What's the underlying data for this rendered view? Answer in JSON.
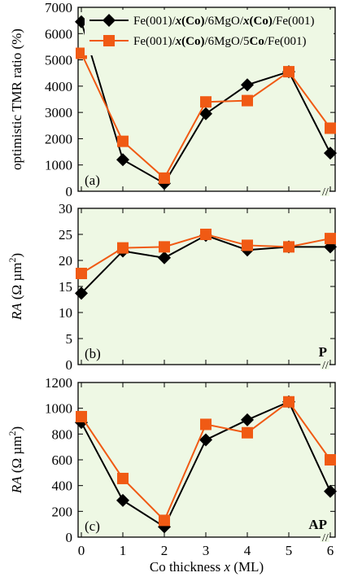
{
  "figure": {
    "x_axis_label_parts": [
      {
        "text": "Co thickness ",
        "style": "normal"
      },
      {
        "text": "x",
        "style": "italic"
      },
      {
        "text": " (ML)",
        "style": "normal"
      }
    ],
    "x_ticks": [
      "0",
      "1",
      "2",
      "3",
      "4",
      "5",
      "6"
    ],
    "axis_break_mark": "//",
    "legend": [
      {
        "name": "Fe(001)/x(Co)/6MgO/x(Co)/Fe(001)",
        "parts": [
          {
            "text": "Fe(001)/",
            "style": "normal"
          },
          {
            "text": "x",
            "style": "bold-italic"
          },
          {
            "text": "(Co)",
            "style": "bold"
          },
          {
            "text": "/6MgO/",
            "style": "normal"
          },
          {
            "text": "x",
            "style": "bold-italic"
          },
          {
            "text": "(Co)",
            "style": "bold"
          },
          {
            "text": "/Fe(001)",
            "style": "normal"
          }
        ],
        "marker": "diamond",
        "color": "#000000"
      },
      {
        "name": "Fe(001)/x(Co)/6MgO/5Co/Fe(001)",
        "parts": [
          {
            "text": "Fe(001)/",
            "style": "normal"
          },
          {
            "text": "x",
            "style": "bold-italic"
          },
          {
            "text": "(Co)",
            "style": "bold"
          },
          {
            "text": "/6MgO/5",
            "style": "normal"
          },
          {
            "text": "Co",
            "style": "bold"
          },
          {
            "text": "/Fe(001)",
            "style": "normal"
          }
        ],
        "marker": "square",
        "color": "#f05a14"
      }
    ],
    "colors": {
      "plot_background": "#eef8e4",
      "series_black": "#000000",
      "series_orange": "#f05a14"
    }
  },
  "chart_data": [
    {
      "type": "line",
      "panel_tag": "(a)",
      "corner_label": "",
      "ylabel_parts": [
        {
          "text": "optimistic TMR ratio (%)",
          "style": "normal"
        }
      ],
      "ylim": [
        0,
        7000
      ],
      "yticks": [
        0,
        1000,
        2000,
        3000,
        4000,
        5000,
        6000,
        7000
      ],
      "x": [
        0,
        1,
        2,
        3,
        4,
        5,
        6
      ],
      "series": [
        {
          "name": "Fe(001)/x(Co)/6MgO/x(Co)/Fe(001)",
          "values": [
            6450,
            1200,
            300,
            2950,
            4050,
            4550,
            1450
          ]
        },
        {
          "name": "Fe(001)/x(Co)/6MgO/5Co/Fe(001)",
          "values": [
            5250,
            1900,
            500,
            3400,
            3450,
            4550,
            2400
          ]
        }
      ],
      "legend_location": "top-right",
      "x_tick_labels_shown": false
    },
    {
      "type": "line",
      "panel_tag": "(b)",
      "corner_label": "P",
      "ylabel_parts": [
        {
          "text": "RA",
          "style": "italic"
        },
        {
          "text": "  (Ω µm",
          "style": "normal"
        },
        {
          "text": "2",
          "style": "sup"
        },
        {
          "text": ")",
          "style": "normal"
        }
      ],
      "ylim": [
        0,
        30
      ],
      "yticks": [
        0,
        5,
        10,
        15,
        20,
        25,
        30
      ],
      "x": [
        0,
        1,
        2,
        3,
        4,
        5,
        6
      ],
      "series": [
        {
          "name": "Fe(001)/x(Co)/6MgO/x(Co)/Fe(001)",
          "values": [
            13.7,
            21.8,
            20.5,
            24.8,
            22.0,
            22.6,
            22.6
          ]
        },
        {
          "name": "Fe(001)/x(Co)/6MgO/5Co/Fe(001)",
          "values": [
            17.5,
            22.4,
            22.6,
            25.0,
            22.9,
            22.6,
            24.2
          ]
        }
      ],
      "x_tick_labels_shown": false
    },
    {
      "type": "line",
      "panel_tag": "(c)",
      "corner_label": "AP",
      "ylabel_parts": [
        {
          "text": "RA",
          "style": "italic"
        },
        {
          "text": "  (Ω µm",
          "style": "normal"
        },
        {
          "text": "2",
          "style": "sup"
        },
        {
          "text": ")",
          "style": "normal"
        }
      ],
      "ylim": [
        0,
        1200
      ],
      "yticks": [
        0,
        200,
        400,
        600,
        800,
        1000,
        1200
      ],
      "x": [
        0,
        1,
        2,
        3,
        4,
        5,
        6
      ],
      "series": [
        {
          "name": "Fe(001)/x(Co)/6MgO/x(Co)/Fe(001)",
          "values": [
            890,
            285,
            80,
            755,
            910,
            1050,
            355
          ]
        },
        {
          "name": "Fe(001)/x(Co)/6MgO/5Co/Fe(001)",
          "values": [
            935,
            455,
            130,
            875,
            810,
            1050,
            600
          ]
        }
      ],
      "x_tick_labels_shown": true
    }
  ]
}
